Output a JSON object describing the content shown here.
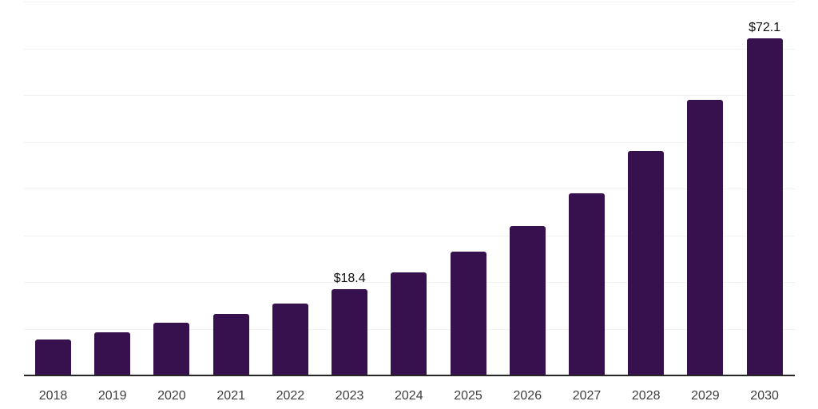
{
  "chart_data": {
    "type": "bar",
    "title": "",
    "xlabel": "",
    "ylabel": "",
    "categories": [
      "2018",
      "2019",
      "2020",
      "2021",
      "2022",
      "2023",
      "2024",
      "2025",
      "2026",
      "2027",
      "2028",
      "2029",
      "2030"
    ],
    "values": [
      7.7,
      9.3,
      11.3,
      13.1,
      15.4,
      18.4,
      22.0,
      26.5,
      32.0,
      39.0,
      48.0,
      58.9,
      72.1
    ],
    "annotations": [
      {
        "category": "2023",
        "text": "$18.4"
      },
      {
        "category": "2030",
        "text": "$72.1"
      }
    ],
    "ylim": [
      0,
      80
    ],
    "grid_step": 10,
    "grid": true,
    "legend": false,
    "colors": {
      "bar": "#37114D",
      "gridline": "#F2F2F2",
      "axis": "#262626",
      "tick_label": "#3D3D3D",
      "annotation": "#111111",
      "background": "#FFFFFF"
    }
  }
}
